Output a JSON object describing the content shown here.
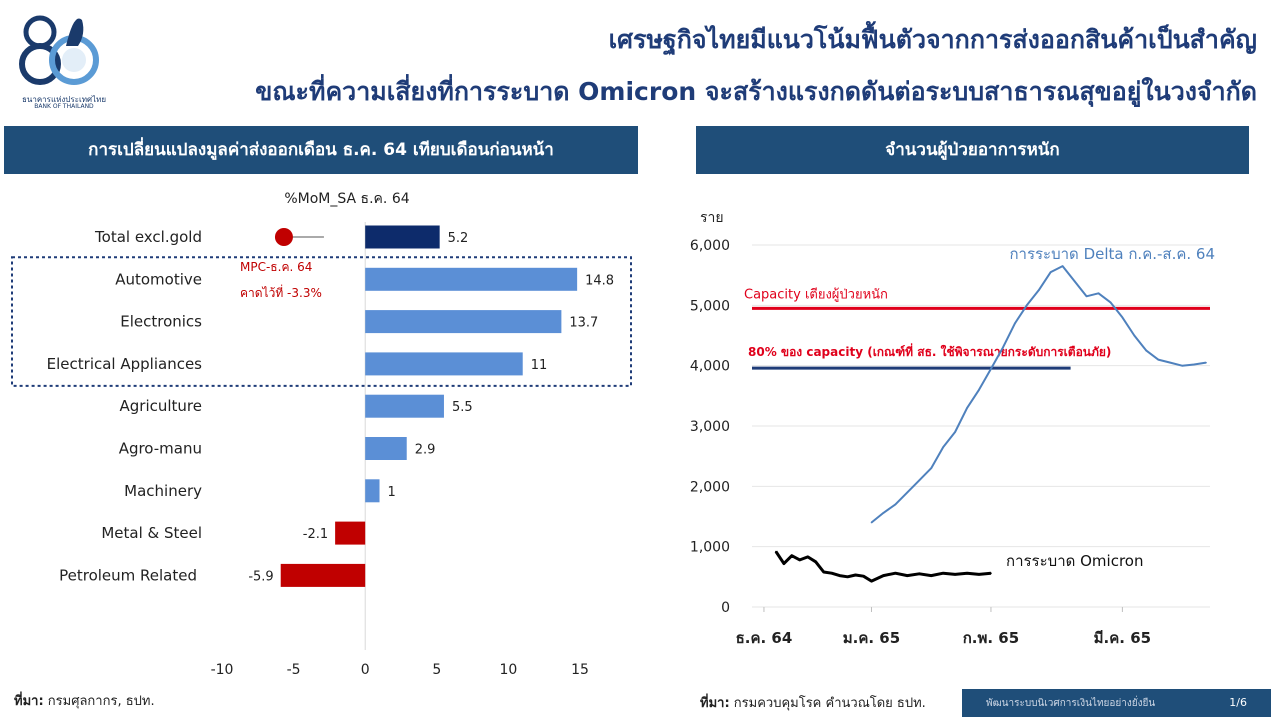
{
  "logo": {
    "caption_th": "ธนาคารแห่งประเทศไทย",
    "caption_en": "BANK OF THAILAND",
    "emblem_text": "80"
  },
  "title": {
    "line1": "เศรษฐกิจไทยมีแนวโน้มฟื้นตัวจากการส่งออกสินค้าเป็นสำคัญ",
    "line2": "ขณะที่ความเสี่ยงที่การระบาด Omicron จะสร้างแรงกดดันต่อระบบสาธารณสุขอยู่ในวงจำกัด"
  },
  "left_panel": {
    "header": "การเปลี่ยนแปลงมูลค่าส่งออกเดือน ธ.ค. 64 เทียบเดือนก่อนหน้า"
  },
  "right_panel": {
    "header": "จำนวนผู้ป่วยอาการหนัก"
  },
  "chart_data": [
    {
      "type": "bar",
      "orientation": "horizontal",
      "title": "%MoM_SA ธ.ค. 64",
      "categories": [
        "Total excl.gold",
        "Automotive",
        "Electronics",
        "Electrical Appliances",
        "Agriculture",
        "Agro-manu",
        "Machinery",
        "Metal & Steel",
        "Petroleum Related"
      ],
      "values": [
        5.2,
        14.8,
        13.7,
        11,
        5.5,
        2.9,
        1,
        -2.1,
        -5.9
      ],
      "value_labels": [
        "5.2",
        "14.8",
        "13.7",
        "11",
        "5.5",
        "2.9",
        "1",
        "-2.1",
        "-5.9"
      ],
      "xlim": [
        -10,
        15
      ],
      "x_ticks": [
        -10,
        -5,
        0,
        5,
        10,
        15
      ],
      "x_tick_labels": [
        "-10",
        "-5",
        "0",
        "5",
        "10",
        "15"
      ],
      "colors": {
        "total": "#0d2b6b",
        "positive": "#5b8fd6",
        "negative": "#c00000",
        "forecast": "#c00000",
        "box": "#1f3c78"
      },
      "forecast": {
        "category": "Total excl.gold",
        "value": -3.3,
        "label_line1": "MPC-ธ.ค. 64",
        "label_line2": "คาดไว้ที่ -3.3%"
      },
      "highlighted_group": [
        "Automotive",
        "Electronics",
        "Electrical Appliances"
      ],
      "grid": false
    },
    {
      "type": "line",
      "ylabel": "ราย",
      "ylim": [
        0,
        6000
      ],
      "y_ticks": [
        0,
        1000,
        2000,
        3000,
        4000,
        5000,
        6000
      ],
      "y_tick_labels": [
        "0",
        "1,000",
        "2,000",
        "3,000",
        "4,000",
        "5,000",
        "6,000"
      ],
      "x_range": [
        0,
        115
      ],
      "x_ticks": [
        3,
        30,
        60,
        93
      ],
      "x_tick_labels": [
        "ธ.ค. 64",
        "ม.ค. 65",
        "ก.พ. 65",
        "มี.ค. 65"
      ],
      "grid": true,
      "series": [
        {
          "name": "การระบาด Delta ก.ค.-ส.ค. 64",
          "color": "#4f81bd",
          "x": [
            30,
            33,
            36,
            39,
            42,
            45,
            48,
            51,
            54,
            57,
            60,
            63,
            66,
            69,
            72,
            75,
            78,
            81,
            84,
            87,
            90,
            93,
            96,
            99,
            102,
            105,
            108,
            111,
            114
          ],
          "y": [
            1400,
            1560,
            1700,
            1900,
            2100,
            2300,
            2650,
            2900,
            3300,
            3600,
            3950,
            4300,
            4700,
            5000,
            5250,
            5550,
            5650,
            5400,
            5150,
            5200,
            5050,
            4800,
            4500,
            4250,
            4100,
            4050,
            4000,
            4020,
            4050
          ]
        },
        {
          "name": "การระบาด Omicron",
          "color": "#000000",
          "x": [
            6,
            8,
            10,
            12,
            14,
            16,
            18,
            20,
            22,
            24,
            26,
            28,
            30,
            33,
            36,
            39,
            42,
            45,
            48,
            51,
            54,
            57,
            60
          ],
          "y": [
            920,
            720,
            850,
            780,
            830,
            750,
            580,
            560,
            520,
            500,
            530,
            510,
            430,
            520,
            560,
            520,
            550,
            520,
            560,
            540,
            560,
            540,
            560
          ]
        }
      ],
      "reference_lines": [
        {
          "label": "Capacity เตียงผู้ป่วยหนัก",
          "y": 4950,
          "color": "#e0001b",
          "x_start": 0,
          "x_end": 115
        },
        {
          "label": "80% ของ capacity (เกณฑ์ที่ สธ. ใช้พิจารณายกระดับการเตือนภัย)",
          "y": 3960,
          "color": "#1f3c78",
          "x_start": 0,
          "x_end": 80
        }
      ]
    }
  ],
  "sources": {
    "left_label": "ที่มา:",
    "left_text": "กรมศุลกากร, ธปท.",
    "right_label": "ที่มา:",
    "right_text": "กรมควบคุมโรค คำนวณโดย ธปท."
  },
  "footer": {
    "text": "พัฒนาระบบนิเวศการเงินไทยอย่างยั่งยืน",
    "page": "1/6"
  }
}
